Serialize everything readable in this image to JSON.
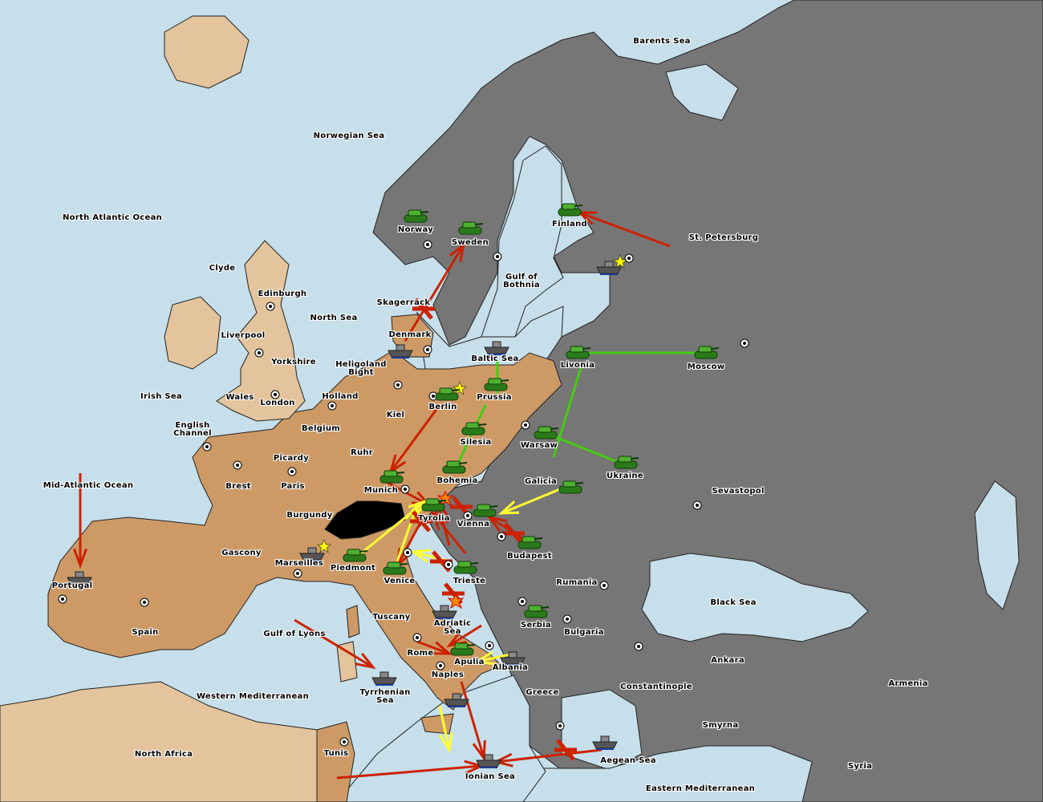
{
  "colors": {
    "sea": "#c6dfea",
    "neutral_land": "#e3c49c",
    "player_a": "#cd9a66",
    "player_b": "#767676",
    "impassable": "#000000",
    "move_order": "#cc2200",
    "support_order": "#ffff33",
    "ally_order": "#44cc11"
  },
  "territories": [
    "Barents Sea",
    "Norwegian Sea",
    "North Atlantic Ocean",
    "Norway",
    "Sweden",
    "Finland",
    "St. Petersburg",
    "Clyde",
    "Edinburgh",
    "Gulf of\nBothnia",
    "Skagerrack",
    "North Sea",
    "Liverpool",
    "Denmark",
    "Baltic Sea",
    "Yorkshire",
    "Heligoland\nBight",
    "Livonia",
    "Moscow",
    "Irish Sea",
    "Wales",
    "Holland",
    "Prussia",
    "Berlin",
    "London",
    "Kiel",
    "English\nChannel",
    "Belgium",
    "Silesia",
    "Warsaw",
    "Ruhr",
    "Picardy",
    "Ukraine",
    "Bohemia",
    "Galicia",
    "Mid-Atlantic Ocean",
    "Brest",
    "Paris",
    "Munich",
    "Sevastopol",
    "Burgundy",
    "Tyrolia",
    "Vienna",
    "Budapest",
    "Gascony",
    "Marseilles",
    "Piedmont",
    "Venice",
    "Trieste",
    "Rumania",
    "Portugal",
    "Black Sea",
    "Tuscany",
    "Adriatic\nSea",
    "Serbia",
    "Spain",
    "Bulgaria",
    "Gulf of Lyons",
    "Rome",
    "Apulia",
    "Ankara",
    "Albania",
    "Naples",
    "Armenia",
    "Constantinople",
    "Greece",
    "Tyrrhenian\nSea",
    "Western Mediterranean",
    "Smyrna",
    "Tunis",
    "North Africa",
    "Aegean Sea",
    "Ionian Sea",
    "Syria",
    "Eastern Mediterranean"
  ],
  "units": [
    {
      "type": "army",
      "territory": "Norway"
    },
    {
      "type": "army",
      "territory": "Sweden"
    },
    {
      "type": "army",
      "territory": "Finland"
    },
    {
      "type": "army",
      "territory": "Livonia"
    },
    {
      "type": "army",
      "territory": "Moscow"
    },
    {
      "type": "army",
      "territory": "Prussia"
    },
    {
      "type": "army",
      "territory": "Berlin"
    },
    {
      "type": "army",
      "territory": "Silesia"
    },
    {
      "type": "army",
      "territory": "Warsaw"
    },
    {
      "type": "army",
      "territory": "Ukraine"
    },
    {
      "type": "army",
      "territory": "Bohemia"
    },
    {
      "type": "army",
      "territory": "Munich"
    },
    {
      "type": "army",
      "territory": "Galicia"
    },
    {
      "type": "army",
      "territory": "Tyrolia"
    },
    {
      "type": "army",
      "territory": "Vienna"
    },
    {
      "type": "army",
      "territory": "Budapest"
    },
    {
      "type": "army",
      "territory": "Piedmont"
    },
    {
      "type": "army",
      "territory": "Venice"
    },
    {
      "type": "army",
      "territory": "Trieste"
    },
    {
      "type": "army",
      "territory": "Serbia"
    },
    {
      "type": "army",
      "territory": "Apulia"
    },
    {
      "type": "fleet",
      "territory": "St. Petersburg"
    },
    {
      "type": "fleet",
      "territory": "Denmark"
    },
    {
      "type": "fleet",
      "territory": "Baltic Sea"
    },
    {
      "type": "fleet",
      "territory": "Marseilles"
    },
    {
      "type": "fleet",
      "territory": "Portugal"
    },
    {
      "type": "fleet",
      "territory": "Adriatic Sea"
    },
    {
      "type": "fleet",
      "territory": "Albania"
    },
    {
      "type": "fleet",
      "territory": "Tyrrhenian Sea"
    },
    {
      "type": "fleet",
      "territory": "Naples"
    },
    {
      "type": "fleet",
      "territory": "Ionian Sea"
    },
    {
      "type": "fleet",
      "territory": "Aegean Sea"
    }
  ]
}
